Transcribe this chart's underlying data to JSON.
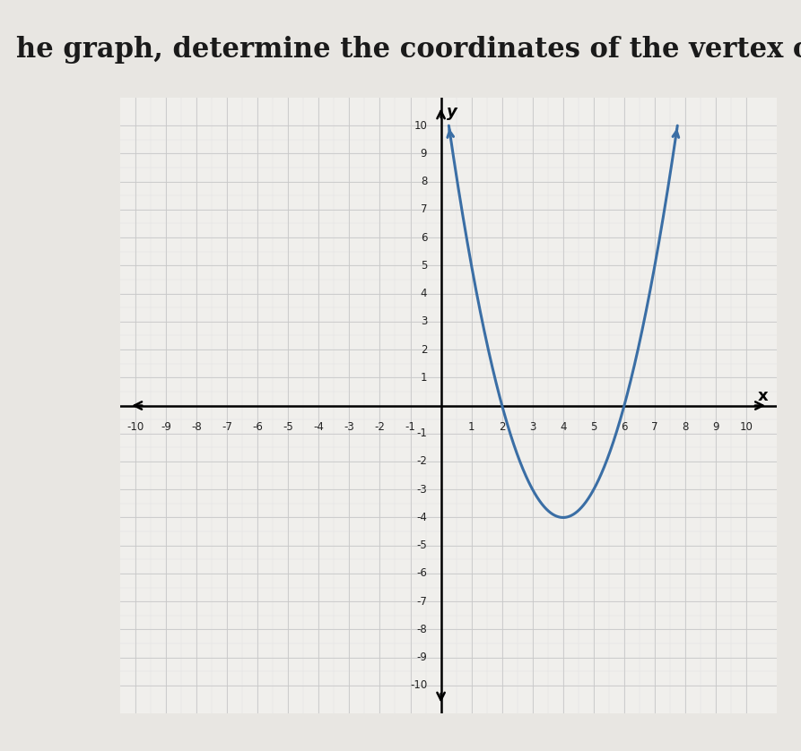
{
  "title": "he graph, determine the coordinates of the vertex of the para",
  "title_fontsize": 22,
  "title_color": "#1a1a1a",
  "xlim": [
    -10,
    10
  ],
  "ylim": [
    -10,
    10
  ],
  "xticks": [
    -10,
    -9,
    -8,
    -7,
    -6,
    -5,
    -4,
    -3,
    -2,
    -1,
    1,
    2,
    3,
    4,
    5,
    6,
    7,
    8,
    9,
    10
  ],
  "yticks": [
    -10,
    -9,
    -8,
    -7,
    -6,
    -5,
    -4,
    -3,
    -2,
    -1,
    1,
    2,
    3,
    4,
    5,
    6,
    7,
    8,
    9,
    10
  ],
  "parabola_vertex_x": 4,
  "parabola_vertex_y": -4,
  "parabola_a": 1.0,
  "curve_color": "#3a6ea5",
  "curve_linewidth": 2.2,
  "grid_color": "#c8c8c8",
  "grid_linewidth": 0.6,
  "fine_grid_color": "#e0e0e0",
  "fine_grid_linewidth": 0.3,
  "bg_left_color": "#b0b0b0",
  "bg_right_color": "#d8d8d8",
  "plot_bg_color": "#f0efec",
  "paper_bg_color": "#eeeeee",
  "xlabel": "x",
  "ylabel": "y",
  "figsize": [
    8.93,
    8.38
  ],
  "dpi": 100
}
